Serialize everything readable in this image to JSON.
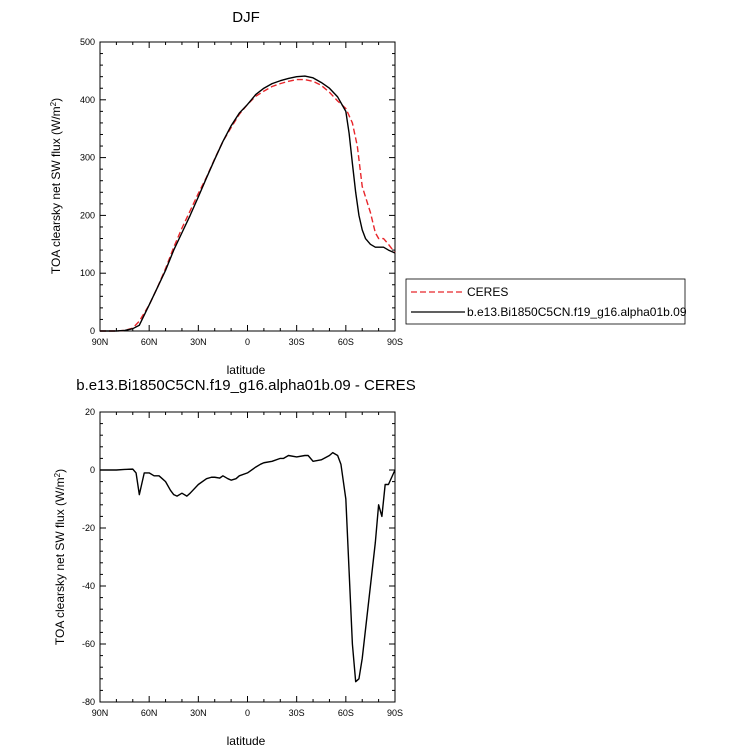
{
  "chart_data": [
    {
      "type": "line",
      "title": "DJF",
      "xlabel": "latitude",
      "ylabel": "TOA clearsky net SW flux (W/m",
      "ylabel_superscript": "2",
      "ylabel_suffix": ")",
      "xlim": [
        90,
        -90
      ],
      "ylim": [
        0,
        500
      ],
      "x_ticks": [
        90,
        60,
        30,
        0,
        -30,
        -60,
        -90
      ],
      "x_tick_labels": [
        "90N",
        "60N",
        "30N",
        "0",
        "30S",
        "60S",
        "90S"
      ],
      "y_ticks": [
        0,
        100,
        200,
        300,
        400,
        500
      ],
      "y_tick_labels": [
        "0",
        "100",
        "200",
        "300",
        "400",
        "500"
      ],
      "grid": false,
      "legend_position": "right",
      "series": [
        {
          "name": "CERES",
          "color": "#e8262b",
          "dash": "dashed",
          "x": [
            90,
            85,
            80,
            75,
            70,
            66,
            60,
            55,
            50,
            45,
            40,
            35,
            30,
            25,
            20,
            15,
            10,
            5,
            0,
            -5,
            -10,
            -15,
            -20,
            -25,
            -30,
            -35,
            -40,
            -45,
            -50,
            -55,
            -60,
            -64,
            -67,
            -70,
            -75,
            -78,
            -80,
            -83,
            -86,
            -90
          ],
          "y": [
            0,
            0,
            0,
            1,
            5,
            17,
            45,
            75,
            108,
            145,
            178,
            208,
            238,
            266,
            298,
            328,
            352,
            375,
            392,
            406,
            415,
            423,
            428,
            432,
            435,
            435,
            432,
            425,
            413,
            398,
            385,
            360,
            320,
            250,
            205,
            170,
            160,
            160,
            150,
            135
          ]
        },
        {
          "name": "b.e13.Bi1850C5CN.f19_g16.alpha01b.09",
          "color": "#000000",
          "dash": "solid",
          "x": [
            90,
            85,
            80,
            75,
            70,
            66,
            60,
            55,
            50,
            45,
            40,
            35,
            30,
            25,
            20,
            15,
            10,
            5,
            0,
            -5,
            -10,
            -15,
            -20,
            -25,
            -30,
            -35,
            -40,
            -45,
            -50,
            -55,
            -60,
            -62,
            -64,
            -66,
            -68,
            -70,
            -72,
            -75,
            -78,
            -80,
            -83,
            -86,
            -90
          ],
          "y": [
            0,
            0,
            0,
            1,
            4,
            10,
            45,
            75,
            105,
            140,
            170,
            200,
            232,
            265,
            297,
            328,
            355,
            377,
            392,
            409,
            420,
            428,
            433,
            437,
            440,
            441,
            438,
            430,
            420,
            405,
            380,
            342,
            290,
            240,
            200,
            175,
            160,
            150,
            145,
            145,
            145,
            140,
            135
          ]
        }
      ]
    },
    {
      "type": "line",
      "title": "b.e13.Bi1850C5CN.f19_g16.alpha01b.09 - CERES",
      "xlabel": "latitude",
      "ylabel": "TOA clearsky net SW flux (W/m",
      "ylabel_superscript": "2",
      "ylabel_suffix": ")",
      "xlim": [
        90,
        -90
      ],
      "ylim": [
        -80,
        20
      ],
      "x_ticks": [
        90,
        60,
        30,
        0,
        -30,
        -60,
        -90
      ],
      "x_tick_labels": [
        "90N",
        "60N",
        "30N",
        "0",
        "30S",
        "60S",
        "90S"
      ],
      "y_ticks": [
        -80,
        -60,
        -40,
        -20,
        0,
        20
      ],
      "y_tick_labels": [
        "-80",
        "-60",
        "-40",
        "-20",
        "0",
        "20"
      ],
      "grid": false,
      "series": [
        {
          "name": "",
          "color": "#000000",
          "dash": "solid",
          "x": [
            90,
            85,
            80,
            75,
            70,
            68,
            66,
            63,
            60,
            57,
            54,
            52,
            50,
            47,
            45,
            43,
            40,
            37,
            35,
            30,
            25,
            22,
            20,
            17,
            15,
            12,
            10,
            7,
            5,
            0,
            -5,
            -8,
            -10,
            -15,
            -20,
            -22,
            -25,
            -30,
            -35,
            -37,
            -40,
            -45,
            -50,
            -52,
            -55,
            -57,
            -60,
            -62,
            -64,
            -66,
            -68,
            -70,
            -72,
            -74,
            -76,
            -78,
            -80,
            -82,
            -84,
            -86,
            -90
          ],
          "y": [
            0,
            0,
            0,
            0.2,
            0.3,
            -1,
            -8.5,
            -1,
            -1,
            -2,
            -2,
            -3,
            -4,
            -7,
            -8.5,
            -9,
            -8,
            -9,
            -8,
            -5,
            -3,
            -2.5,
            -2.5,
            -2.8,
            -2,
            -3,
            -3.5,
            -3,
            -2,
            -1,
            1,
            2,
            2.5,
            3,
            4,
            4,
            5,
            4.5,
            5,
            5,
            3,
            3.5,
            5,
            6,
            5,
            2,
            -10,
            -35,
            -60,
            -73,
            -72,
            -65,
            -55,
            -45,
            -35,
            -25,
            -12,
            -16,
            -5,
            -5,
            0
          ]
        }
      ]
    }
  ]
}
